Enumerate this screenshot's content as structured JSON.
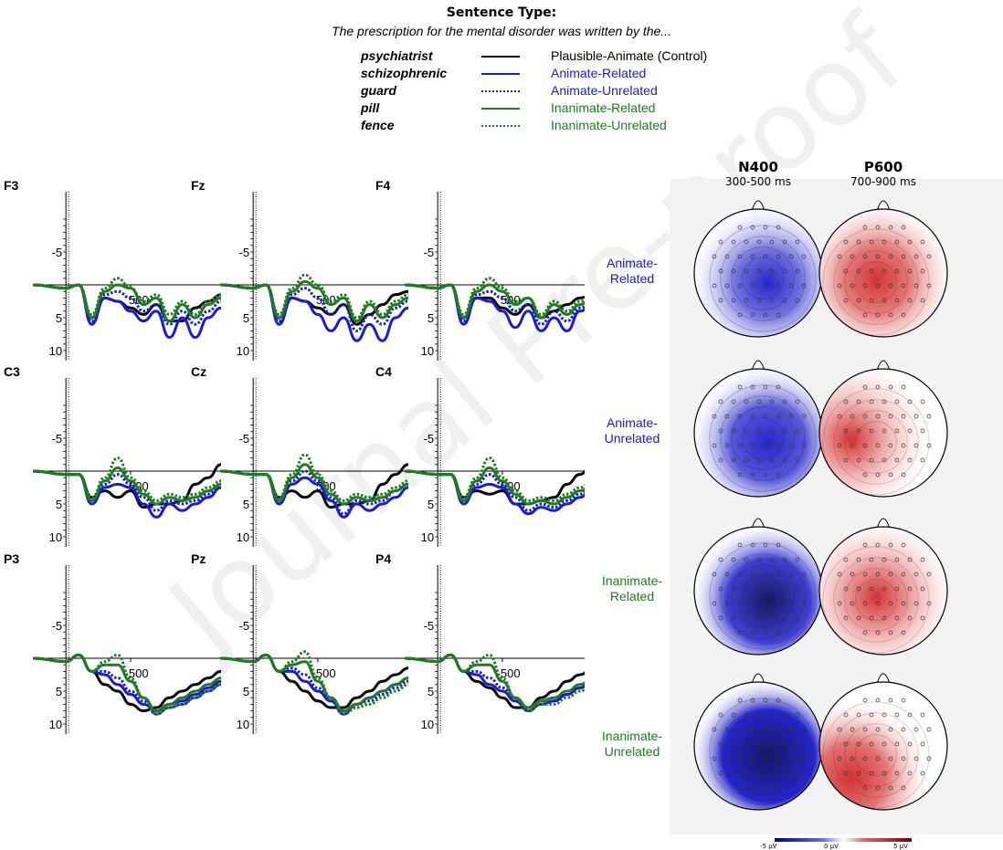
{
  "legend": {
    "heading": "Sentence Type:",
    "sentence": "The prescription for the mental disorder was written by the...",
    "items": [
      {
        "word": "psychiatrist",
        "label": "Plausible-Animate (Control)",
        "color": "#000000",
        "style": "solid",
        "label_color": "#000000"
      },
      {
        "word": "schizophrenic",
        "label": "Animate-Related",
        "color": "#1a1adb",
        "style": "solid",
        "label_color": "#1a1adb"
      },
      {
        "word": "guard",
        "label": "Animate-Unrelated",
        "color": "#1a1adb",
        "style": "dotted",
        "label_color": "#1a1adb"
      },
      {
        "word": "pill",
        "label": "Inanimate-Related",
        "color": "#1e7d1e",
        "style": "solid",
        "label_color": "#1e7d1e"
      },
      {
        "word": "fence",
        "label": "Inanimate-Unrelated",
        "color": "#1e7d1e",
        "style": "dotted",
        "label_color": "#1e7d1e"
      }
    ]
  },
  "topo": {
    "columns": [
      {
        "title": "N400",
        "subtitle": "300-500 ms"
      },
      {
        "title": "P600",
        "subtitle": "700-900 ms"
      }
    ],
    "rows": [
      {
        "label_lines": [
          "Animate-",
          "Related"
        ],
        "color": "#1a1adb",
        "n400": -0.55,
        "p600": 0.55
      },
      {
        "label_lines": [
          "Animate-",
          "Unrelated"
        ],
        "color": "#1a1adb",
        "n400": -0.7,
        "p600": 0.35
      },
      {
        "label_lines": [
          "Inanimate-",
          "Related"
        ],
        "color": "#1e7d1e",
        "n400": -0.85,
        "p600": 0.4
      },
      {
        "label_lines": [
          "Inanimate-",
          "Unrelated"
        ],
        "color": "#1e7d1e",
        "n400": -1.0,
        "p600": 0.6
      }
    ],
    "colorbar": {
      "min_label": "-5 µV",
      "mid_label": "0 µV",
      "max_label": "5 µV",
      "neg_color": "#00007a",
      "pos_color": "#7a0000"
    }
  },
  "chart_data": {
    "type": "line",
    "y_inverted": true,
    "ylim": [
      -10,
      10
    ],
    "y_ticks": [
      "-5",
      "5",
      "10"
    ],
    "x_tick_label": "500",
    "xlim_ms": [
      -100,
      1200
    ],
    "x_ms": [
      -100,
      0,
      100,
      200,
      300,
      400,
      500,
      600,
      700,
      800,
      900,
      1000,
      1100,
      1200
    ],
    "series_names": [
      "Plausible-Animate (Control)",
      "Animate-Related",
      "Animate-Unrelated",
      "Inanimate-Related",
      "Inanimate-Unrelated"
    ],
    "series_colors": [
      "#000000",
      "#1a1adb",
      "#1a1adb",
      "#1e7d1e",
      "#1e7d1e"
    ],
    "series_styles": [
      "solid",
      "solid",
      "dotted",
      "solid",
      "dotted"
    ],
    "electrodes": [
      {
        "name": "F3",
        "series": [
          [
            0,
            0.5,
            0,
            5,
            2,
            2.5,
            3.5,
            4.5,
            3,
            5.5,
            5.5,
            3.5,
            2.5,
            1.5
          ],
          [
            0,
            0.5,
            0,
            6,
            2,
            2.5,
            4,
            5.5,
            4,
            8,
            5,
            8,
            5,
            3.5
          ],
          [
            0,
            0.5,
            0,
            5.5,
            1.5,
            1,
            2,
            4,
            3,
            6,
            4,
            6,
            4,
            2.5
          ],
          [
            0,
            0.5,
            0,
            5,
            1,
            0,
            0.5,
            3,
            2,
            5.5,
            3,
            5,
            3,
            2
          ],
          [
            0,
            0.5,
            0,
            4.5,
            0.5,
            -1,
            0.5,
            2.5,
            1.5,
            4.5,
            2.5,
            4.5,
            2.5,
            1.5
          ]
        ]
      },
      {
        "name": "Fz",
        "series": [
          [
            0,
            0.5,
            0,
            5,
            2,
            2.5,
            3.5,
            4.5,
            3,
            6,
            4.5,
            3,
            1.5,
            1
          ],
          [
            0,
            0.5,
            0,
            6,
            2,
            2.5,
            4.5,
            7,
            5,
            8.5,
            6,
            8.5,
            5,
            3.5
          ],
          [
            0,
            0.5,
            0,
            5.5,
            1.5,
            0.5,
            2,
            4.5,
            3,
            7,
            4.5,
            6,
            3.5,
            2.5
          ],
          [
            0,
            0.5,
            0,
            5,
            1,
            -0.5,
            0.5,
            3,
            2,
            5.5,
            3,
            5,
            3,
            2
          ],
          [
            0,
            0.5,
            0,
            4.5,
            0.5,
            -1.5,
            0,
            2.5,
            1.5,
            5,
            2.5,
            4.5,
            2.5,
            1.5
          ]
        ]
      },
      {
        "name": "F4",
        "series": [
          [
            0,
            0.5,
            0,
            5,
            2,
            2,
            3.5,
            4.5,
            3,
            5,
            4,
            3,
            2,
            1.5
          ],
          [
            0,
            0.5,
            0,
            6,
            2,
            2.5,
            4,
            6.5,
            4,
            7,
            5,
            7,
            4,
            3
          ],
          [
            0,
            0.5,
            0,
            5.5,
            1.5,
            1,
            2,
            4,
            3,
            6,
            4,
            5.5,
            3.5,
            2.5
          ],
          [
            0,
            0.5,
            0,
            5,
            1,
            0,
            1,
            3,
            2,
            5,
            3,
            4.5,
            3,
            2
          ],
          [
            0,
            0.5,
            0,
            4.5,
            0.5,
            -1,
            0.5,
            2.5,
            2,
            4.5,
            2.5,
            4,
            2.5,
            1.5
          ]
        ]
      },
      {
        "name": "C3",
        "series": [
          [
            0,
            0.5,
            0.5,
            4,
            3,
            4,
            3,
            5.5,
            5,
            5,
            4.5,
            2,
            1,
            -1
          ],
          [
            0,
            0.5,
            0.5,
            5,
            2.5,
            2,
            2.5,
            5,
            7,
            5,
            6,
            5,
            4,
            2.5
          ],
          [
            0,
            0.5,
            0.5,
            4.5,
            2,
            0.5,
            2,
            4,
            6,
            4.5,
            5,
            4.5,
            3.5,
            2
          ],
          [
            0,
            0.5,
            0.5,
            4.5,
            1.5,
            -0.5,
            1.5,
            3.5,
            5,
            4,
            4.5,
            4,
            3,
            2
          ],
          [
            0,
            0.5,
            0.5,
            4,
            1,
            -2,
            1,
            3,
            4.5,
            3.5,
            4,
            3.5,
            2.5,
            1.5
          ]
        ]
      },
      {
        "name": "Cz",
        "series": [
          [
            0,
            0.5,
            0.5,
            4,
            3,
            4,
            3,
            5.5,
            5,
            5,
            4.5,
            2,
            0.5,
            -1
          ],
          [
            0,
            0.5,
            0.5,
            5,
            2,
            1,
            2,
            4.5,
            7,
            5,
            6,
            5,
            4,
            2.5
          ],
          [
            0,
            0.5,
            0.5,
            4.5,
            1.5,
            0,
            1.5,
            4,
            6.5,
            4.5,
            5,
            4.5,
            3,
            2
          ],
          [
            0,
            0.5,
            0.5,
            4.5,
            1,
            -1,
            1,
            3.5,
            5,
            4,
            4.5,
            4,
            3,
            2
          ],
          [
            0,
            0.5,
            0.5,
            4,
            0.5,
            -2.5,
            0.5,
            3,
            4.5,
            3.5,
            4,
            3.5,
            2.5,
            1.5
          ]
        ]
      },
      {
        "name": "C4",
        "series": [
          [
            0,
            0.5,
            0.5,
            4,
            3,
            3.5,
            3,
            5,
            5,
            4.5,
            4,
            2,
            0.5,
            -1
          ],
          [
            0,
            0.5,
            0.5,
            5,
            2.5,
            2,
            2.5,
            5,
            6.5,
            5.5,
            6,
            5,
            4,
            2.5
          ],
          [
            0,
            0.5,
            0.5,
            4.5,
            2,
            0.5,
            2,
            4,
            6,
            5,
            5.5,
            4.5,
            3.5,
            2
          ],
          [
            0,
            0.5,
            0.5,
            4.5,
            1.5,
            -0.5,
            1.5,
            3.5,
            5,
            4.5,
            5,
            4,
            3,
            2
          ],
          [
            0,
            0.5,
            0.5,
            4,
            1,
            -2,
            1,
            3,
            4.5,
            4,
            4.5,
            3.5,
            2.5,
            1.5
          ]
        ]
      },
      {
        "name": "P3",
        "series": [
          [
            0,
            0.5,
            -0.5,
            2,
            4,
            5,
            7,
            8,
            7.5,
            6,
            5,
            4,
            3,
            2
          ],
          [
            0,
            0.5,
            -0.5,
            2,
            2.5,
            4,
            5.5,
            7,
            8,
            7,
            6.5,
            5.5,
            4.5,
            3.5
          ],
          [
            0,
            0.5,
            -0.5,
            2,
            2,
            3,
            5,
            6.5,
            8.5,
            7.5,
            7,
            6,
            5,
            4
          ],
          [
            0,
            0.5,
            -0.5,
            2,
            1,
            1,
            3.5,
            6,
            8,
            7,
            6,
            5,
            4,
            3
          ],
          [
            0,
            0.5,
            -0.5,
            2,
            0.5,
            -0.5,
            3,
            6,
            8.5,
            7.5,
            7,
            6,
            5,
            4
          ]
        ]
      },
      {
        "name": "Pz",
        "series": [
          [
            0,
            0.5,
            -0.5,
            2,
            3.5,
            5,
            6.5,
            7.5,
            7.5,
            6,
            5,
            3.5,
            2.5,
            1.5
          ],
          [
            0,
            0.5,
            -0.5,
            2,
            2,
            3.5,
            5,
            6.5,
            8.5,
            7,
            6,
            5,
            4,
            3
          ],
          [
            0,
            0.5,
            -0.5,
            2,
            1.5,
            2.5,
            4.5,
            6,
            8,
            7,
            6.5,
            5.5,
            4.5,
            3.5
          ],
          [
            0,
            0.5,
            -0.5,
            2,
            1,
            0.5,
            3.5,
            6,
            8,
            7,
            6,
            5,
            4,
            3
          ],
          [
            0,
            0.5,
            -0.5,
            2,
            0.5,
            -1,
            3,
            6,
            8.5,
            7.5,
            7,
            6,
            5,
            4
          ]
        ]
      },
      {
        "name": "P4",
        "series": [
          [
            0,
            0.5,
            -0.5,
            2,
            3.5,
            4.5,
            6,
            7.5,
            7.5,
            6,
            5,
            3.5,
            2.5,
            1.5
          ],
          [
            0,
            0.5,
            -0.5,
            2,
            2.5,
            4,
            5,
            6.5,
            8,
            7,
            6.5,
            5.5,
            4.5,
            3.5
          ],
          [
            0,
            0.5,
            -0.5,
            2,
            2,
            3,
            4.5,
            6,
            8,
            7,
            6.5,
            5.5,
            4.5,
            3.5
          ],
          [
            0,
            0.5,
            -0.5,
            2,
            1,
            1,
            3.5,
            6,
            7.5,
            6.5,
            6,
            5,
            4,
            3
          ],
          [
            0,
            0.5,
            -0.5,
            2,
            0.5,
            -0.5,
            3,
            6,
            8,
            7,
            7,
            6,
            5,
            4
          ]
        ]
      }
    ]
  }
}
